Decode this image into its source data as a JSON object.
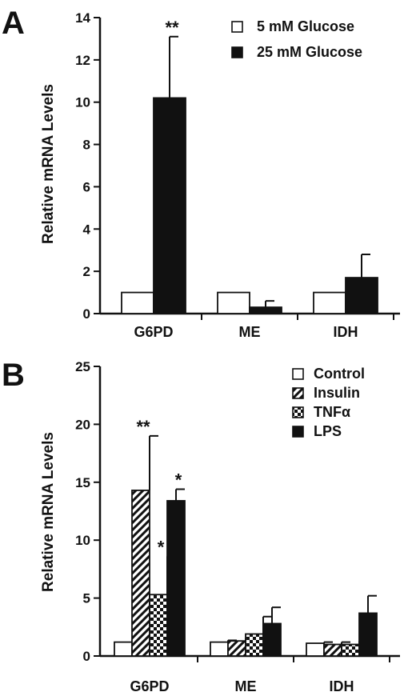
{
  "chart_data": [
    {
      "panel": "A",
      "type": "bar",
      "ylabel": "Relative mRNA Levels",
      "xlabel": "",
      "ylim": [
        0,
        14
      ],
      "yticks": [
        0,
        2,
        4,
        6,
        8,
        10,
        12,
        14
      ],
      "categories": [
        "G6PD",
        "ME",
        "IDH"
      ],
      "legend_position": "top-right",
      "series": [
        {
          "name": "5 mM Glucose",
          "fill": "white",
          "values": [
            1.0,
            1.0,
            1.0
          ],
          "errors": [
            0,
            0,
            0.05
          ]
        },
        {
          "name": "25 mM Glucose",
          "fill": "black",
          "values": [
            10.2,
            0.3,
            1.7
          ],
          "errors": [
            2.9,
            0.3,
            1.1
          ]
        }
      ],
      "annotations": [
        {
          "category": 0,
          "series": 1,
          "text": "**"
        }
      ]
    },
    {
      "panel": "B",
      "type": "bar",
      "ylabel": "Relative mRNA Levels",
      "xlabel": "",
      "ylim": [
        0,
        25
      ],
      "yticks": [
        0,
        5,
        10,
        15,
        20,
        25
      ],
      "categories": [
        "G6PD",
        "ME",
        "IDH"
      ],
      "legend_position": "top-right",
      "series": [
        {
          "name": "Control",
          "fill": "white",
          "values": [
            1.2,
            1.2,
            1.1
          ],
          "errors": [
            0.2,
            0.15,
            0.1
          ]
        },
        {
          "name": "Insulin",
          "fill": "hatch",
          "values": [
            14.3,
            1.3,
            1.0
          ],
          "errors": [
            4.7,
            0.3,
            0.2
          ]
        },
        {
          "name": "TNFα",
          "fill": "check",
          "values": [
            5.3,
            1.9,
            1.0
          ],
          "errors": [
            3.3,
            1.5,
            0.3
          ]
        },
        {
          "name": "LPS",
          "fill": "black",
          "values": [
            13.4,
            2.8,
            3.7
          ],
          "errors": [
            1.0,
            1.4,
            1.5
          ]
        }
      ],
      "annotations": [
        {
          "category": 0,
          "series": 1,
          "text": "**"
        },
        {
          "category": 0,
          "series": 2,
          "text": "*"
        },
        {
          "category": 0,
          "series": 3,
          "text": "*"
        }
      ]
    }
  ]
}
